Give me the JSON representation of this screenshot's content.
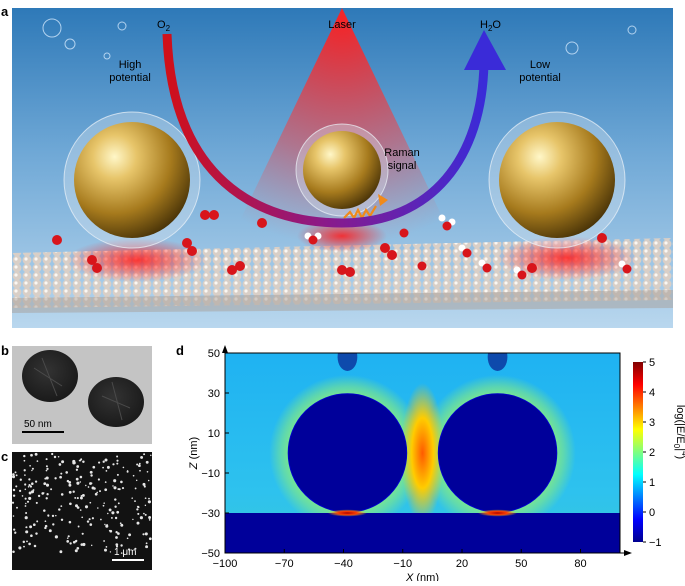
{
  "panels": {
    "a": {
      "label": "a",
      "laser": "Laser",
      "o2": "O",
      "o2_sub": "2",
      "h2o_h": "H",
      "h2o_sub": "2",
      "h2o_o": "O",
      "high_potential": [
        "High",
        "potential"
      ],
      "low_potential": [
        "Low",
        "potential"
      ],
      "raman_signal": [
        "Raman",
        "signal"
      ]
    },
    "b": {
      "label": "b",
      "scale_bar": "50 nm"
    },
    "c": {
      "label": "c",
      "scale_bar": "1 μm"
    },
    "d": {
      "label": "d"
    }
  },
  "chart_data": {
    "type": "heatmap",
    "xlabel": "X (nm)",
    "ylabel": "Z (nm)",
    "xlim": [
      -100,
      100
    ],
    "ylim": [
      -50,
      50
    ],
    "x_ticks": [
      -100,
      -70,
      -40,
      -10,
      20,
      50,
      80
    ],
    "y_ticks": [
      50,
      30,
      10,
      -10,
      -30,
      -50
    ],
    "colorbar": {
      "label": "log(|E/E0|^4)",
      "label_parts": [
        "log(|E/E",
        "0",
        "|",
        "4",
        ")"
      ],
      "ticks": [
        5,
        4,
        3,
        2,
        1,
        0,
        -1
      ],
      "range": [
        -1,
        5
      ],
      "colormap": "jet"
    },
    "spheres": [
      {
        "center_x": -38,
        "center_z": 0,
        "radius": 30
      },
      {
        "center_x": 38,
        "center_z": 0,
        "radius": 30
      }
    ],
    "substrate_top_z": -30,
    "hotspots": [
      {
        "x": 0,
        "z": 0,
        "level": 3.5
      },
      {
        "x": -38,
        "z": -30,
        "level": 5
      },
      {
        "x": 38,
        "z": -30,
        "level": 5
      }
    ]
  },
  "colors": {
    "substrate": "#00009a",
    "background_field": "#2fb6f0",
    "hotspot": "#ff3a00",
    "arrow_start": "#d0101a",
    "arrow_end": "#3a2bd8"
  }
}
